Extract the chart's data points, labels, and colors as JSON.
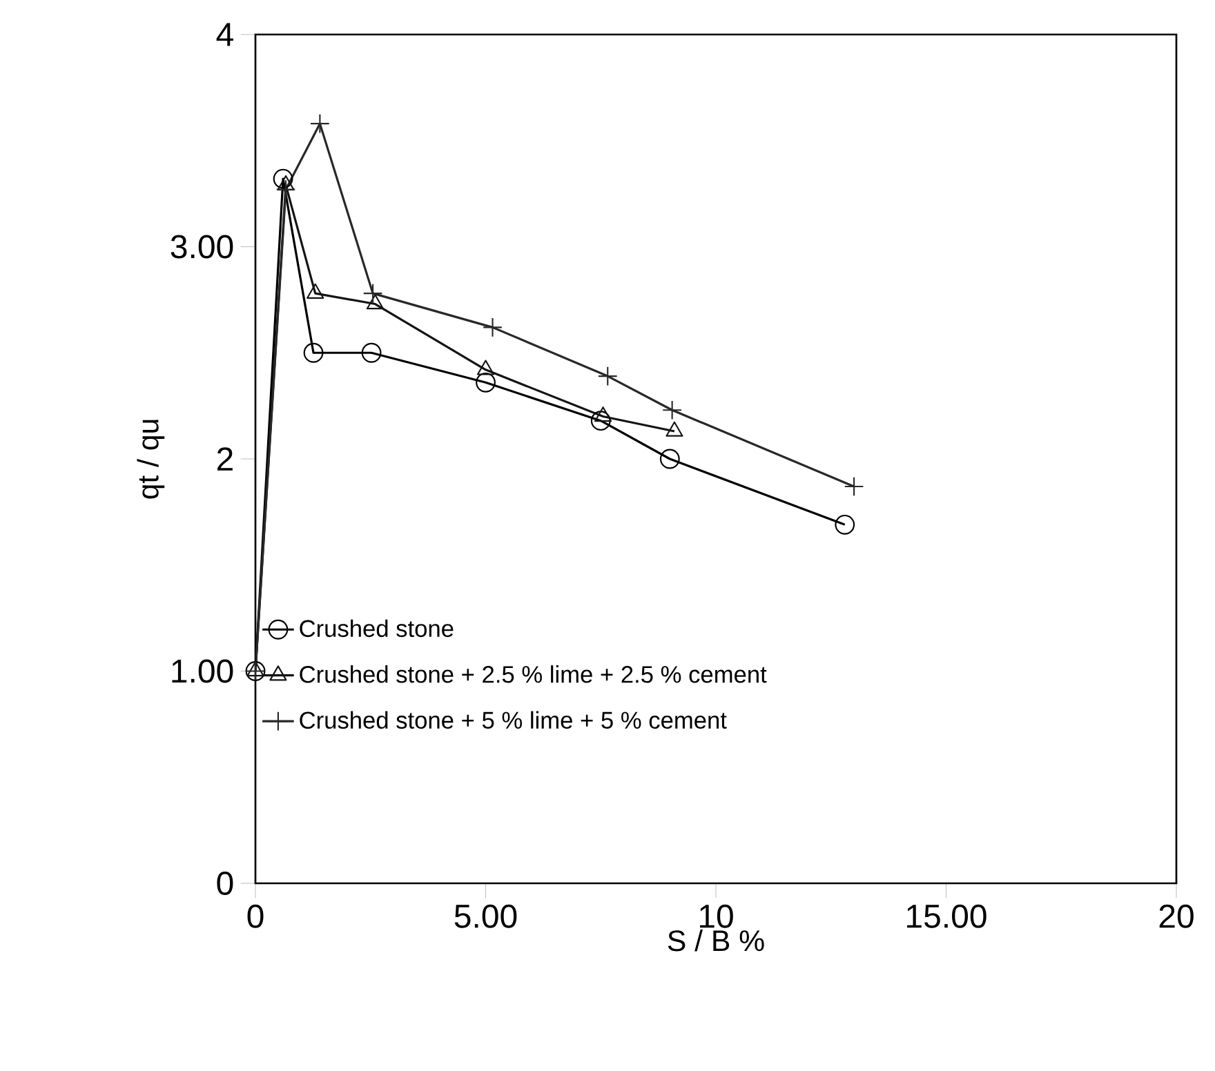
{
  "chart_data": {
    "type": "line",
    "xlabel": "S / B %",
    "ylabel": "qt / qu",
    "xlim": [
      0,
      20
    ],
    "ylim": [
      0,
      4
    ],
    "xticks": [
      0,
      {
        "value": 5,
        "label": "5.00"
      },
      10,
      {
        "value": 15,
        "label": "15.00"
      },
      20
    ],
    "yticks": [
      0,
      {
        "value": 1,
        "label": "1.00"
      },
      2,
      {
        "value": 3,
        "label": "3.00"
      },
      4
    ],
    "legend": "bottom left",
    "grid": false,
    "line_style": "solid",
    "series": [
      {
        "name": "Crushed stone",
        "color": "#000000",
        "marker": "circle",
        "x": [
          0,
          0.6,
          1.26,
          2.52,
          5.0,
          7.5,
          9.0,
          12.8
        ],
        "values": [
          1.0,
          3.32,
          2.5,
          2.5,
          2.36,
          2.18,
          2.0,
          1.69
        ]
      },
      {
        "name": "Crushed stone + 2.5 % lime + 2.5 % cement",
        "color": "#141414",
        "marker": "triangle",
        "x": [
          0,
          0.66,
          1.3,
          2.6,
          5.0,
          7.55,
          9.1
        ],
        "values": [
          1.0,
          3.29,
          2.78,
          2.73,
          2.42,
          2.2,
          2.13
        ]
      },
      {
        "name": "Crushed stone + 5 % lime + 5 % cement",
        "color": "#282828",
        "marker": "cross",
        "x": [
          0,
          0.66,
          1.4,
          2.55,
          5.15,
          7.65,
          9.05,
          13.0
        ],
        "values": [
          1.0,
          3.27,
          3.58,
          2.78,
          2.62,
          2.39,
          2.23,
          1.87
        ]
      }
    ]
  }
}
